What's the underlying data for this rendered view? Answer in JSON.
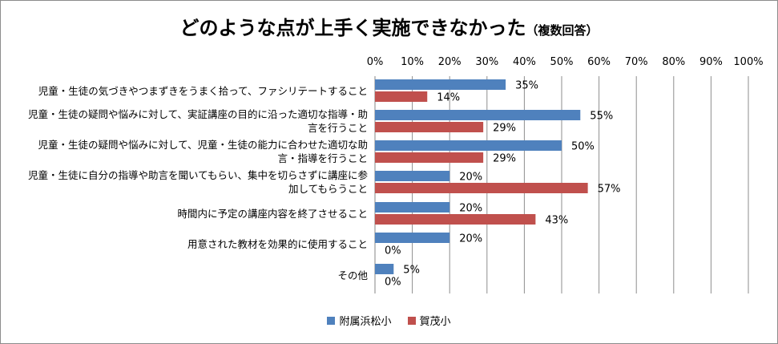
{
  "chart_data": {
    "type": "bar",
    "orientation": "horizontal",
    "title": "どのような点が上手く実施できなかった",
    "subtitle": "（複数回答）",
    "categories": [
      [
        "児童・生徒の気づきやつまずきをうまく拾って、ファシリテートすること"
      ],
      [
        "児童・生徒の疑問や悩みに対して、実証講座の目的に沿った適切な指導・助",
        "言を行うこと"
      ],
      [
        "児童・生徒の疑問や悩みに対して、児童・生徒の能力に合わせた適切な助",
        "言・指導を行うこと"
      ],
      [
        "児童・生徒に自分の指導や助言を聞いてもらい、集中を切らさずに講座に参",
        "加してもらうこと"
      ],
      [
        "時間内に予定の講座内容を終了させること"
      ],
      [
        "用意された教材を効果的に使用すること"
      ],
      [
        "その他"
      ]
    ],
    "series": [
      {
        "name": "附属浜松小",
        "color": "#4f81bd",
        "values": [
          35,
          55,
          50,
          20,
          20,
          20,
          5
        ]
      },
      {
        "name": "賀茂小",
        "color": "#c0504d",
        "values": [
          14,
          29,
          29,
          57,
          43,
          0,
          0
        ]
      }
    ],
    "xlim": [
      0,
      100
    ],
    "xticks": [
      "0%",
      "10%",
      "20%",
      "30%",
      "40%",
      "50%",
      "60%",
      "70%",
      "80%",
      "90%",
      "100%"
    ],
    "value_suffix": "%",
    "grid": true,
    "legend_position": "bottom"
  }
}
